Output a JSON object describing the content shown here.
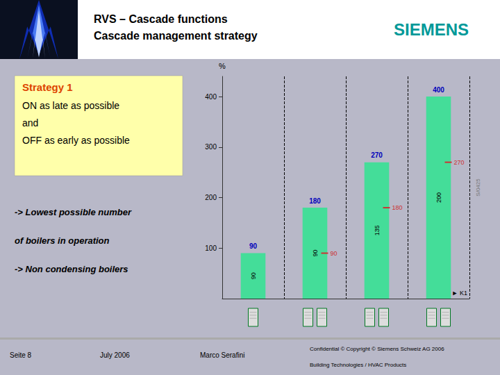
{
  "chart_data": {
    "type": "bar",
    "title": "RVS – Cascade functions",
    "subtitle": "Cascade management strategy",
    "y_label": "%",
    "categories": [
      null,
      null,
      null,
      null
    ],
    "values": [
      90,
      180,
      270,
      400
    ],
    "color": "#44dd99",
    "data_labels": true,
    "previous_values": [
      null,
      90,
      180,
      270
    ],
    "per_boiler_values": [
      90,
      90,
      135,
      200
    ],
    "boilers": [
      1,
      2,
      2,
      2
    ],
    "ylim": [
      0,
      440
    ],
    "yticks": [
      100,
      200,
      300,
      400
    ],
    "tick_labels": "y",
    "annotations": [
      "SIEMENS",
      "Strategy 1",
      "ON as late as possible",
      "and",
      "OFF as early as possible",
      "-> Lowest possible number",
      "of boilers in operation",
      "-> Non condensing boilers",
      "► K1",
      "S/0425",
      "Seite 8",
      "July 2006",
      "Marco Serafini",
      "Confidential © Copyright © Siemens Schweiz AG 2006",
      "Building Technologies / HVAC Products"
    ]
  }
}
